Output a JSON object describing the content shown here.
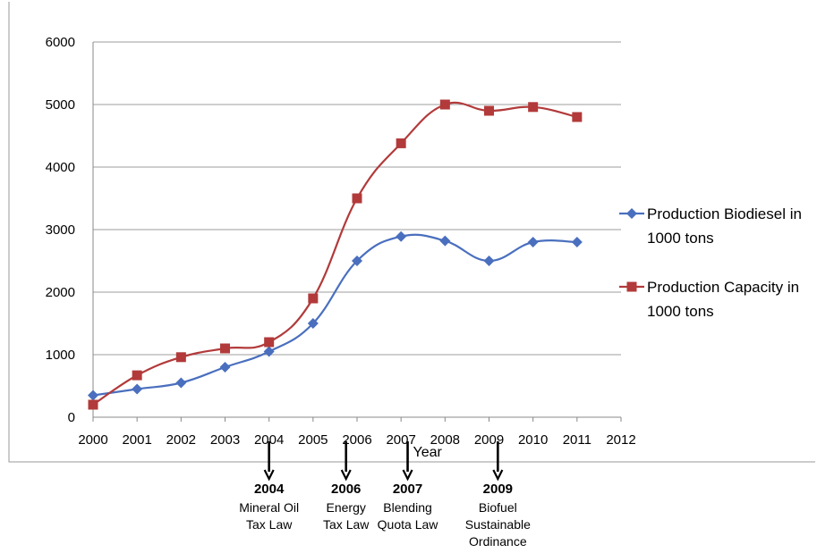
{
  "chart_data": {
    "type": "line",
    "xlabel": "Year",
    "ylabel": "",
    "x": [
      2000,
      2001,
      2002,
      2003,
      2004,
      2005,
      2006,
      2007,
      2008,
      2009,
      2010,
      2011
    ],
    "xlim": [
      2000,
      2012
    ],
    "xticks": [
      "2000",
      "2001",
      "2002",
      "2003",
      "2004",
      "2005",
      "2006",
      "2007",
      "2008",
      "2009",
      "2010",
      "2011",
      "2012"
    ],
    "ylim": [
      0,
      6000
    ],
    "yticks": [
      "0",
      "1000",
      "2000",
      "3000",
      "4000",
      "5000",
      "6000"
    ],
    "grid": "horizontal",
    "legend": "right",
    "series": [
      {
        "name": "Production Biodiesel in 1000 tons",
        "legend_lines": [
          "Production Biodiesel in",
          "1000 tons"
        ],
        "color": "#4a6fbe",
        "marker": "diamond",
        "values": [
          350,
          450,
          550,
          800,
          1050,
          1500,
          2500,
          2890,
          2820,
          2500,
          2800,
          2800
        ]
      },
      {
        "name": "Production Capacity in 1000 tons",
        "legend_lines": [
          "Production Capacity in",
          "1000 tons"
        ],
        "color": "#b23a3a",
        "marker": "square",
        "values": [
          200,
          670,
          960,
          1100,
          1200,
          1900,
          3500,
          4380,
          5000,
          4900,
          4960,
          4800
        ]
      }
    ]
  },
  "annotations": [
    {
      "x": 2004,
      "year": "2004",
      "lines": [
        "Mineral Oil",
        "Tax Law"
      ]
    },
    {
      "x": 2005.75,
      "year": "2006",
      "lines": [
        "Energy",
        "Tax Law"
      ]
    },
    {
      "x": 2007.15,
      "year": "2007",
      "lines": [
        "Blending",
        "Quota Law"
      ]
    },
    {
      "x": 2009.2,
      "year": "2009",
      "lines": [
        "Biofuel",
        "Sustainable",
        "Ordinance"
      ]
    }
  ]
}
